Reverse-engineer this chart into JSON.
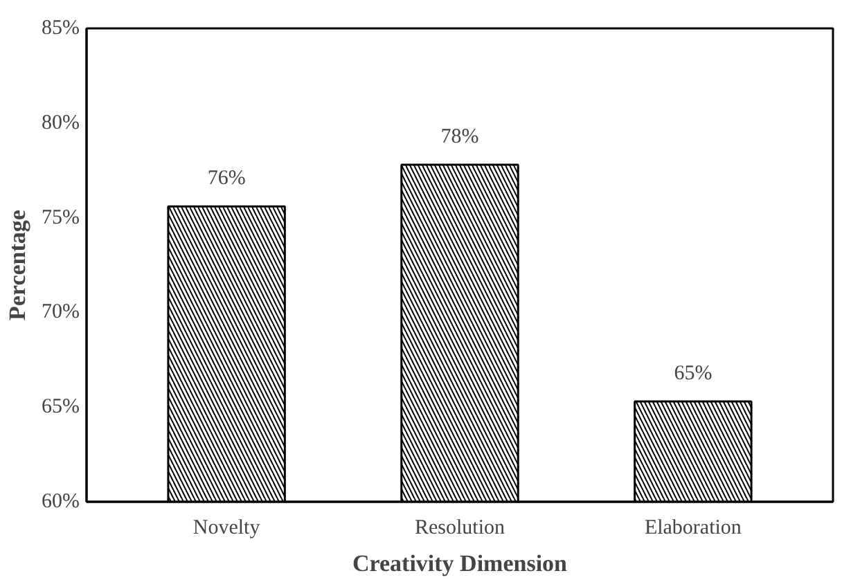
{
  "chart_data": {
    "type": "bar",
    "xlabel": "Creativity Dimension",
    "ylabel": "Percentage",
    "categories": [
      "Novelty",
      "Resolution",
      "Elaboration"
    ],
    "values": [
      75.6,
      77.8,
      65.3
    ],
    "value_labels": [
      "76%",
      "78%",
      "65%"
    ],
    "color": "#000000",
    "ylim": [
      60,
      85
    ],
    "yticks": [
      {
        "value": 60,
        "label": "60%"
      },
      {
        "value": 65,
        "label": "65%"
      },
      {
        "value": 70,
        "label": "70%"
      },
      {
        "value": 75,
        "label": "75%"
      },
      {
        "value": 80,
        "label": "80%"
      },
      {
        "value": 85,
        "label": "85%"
      }
    ],
    "grid": false
  }
}
